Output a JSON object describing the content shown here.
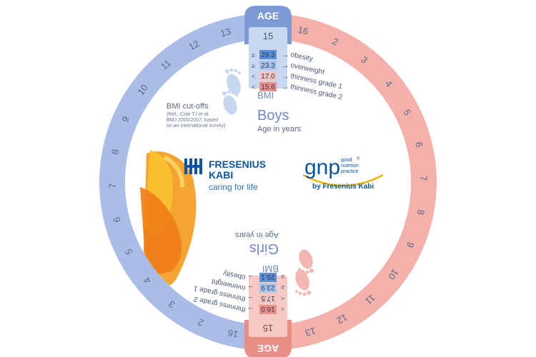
{
  "age_tab": {
    "label": "AGE",
    "current": "15"
  },
  "boys": {
    "title": "Boys",
    "subtitle": "Age in years",
    "bmi_label": "BMI",
    "rows": [
      {
        "sym": "≥",
        "value": "28.3",
        "label": "obesity",
        "color": "#5b8fd6"
      },
      {
        "sym": "≥",
        "value": "23.3",
        "label": "overweight",
        "color": "#a9c3eb"
      },
      {
        "sym": "<",
        "value": "17.0",
        "label": "thinness grade 1",
        "color": "#f5c5c3"
      },
      {
        "sym": "<",
        "value": "15.6",
        "label": "thinness grade 2",
        "color": "#ee8e87"
      }
    ],
    "ring_numbers": [
      "16",
      "2",
      "3",
      "4",
      "5",
      "6",
      "7",
      "8",
      "9",
      "10",
      "11",
      "12",
      "13",
      "14"
    ]
  },
  "girls": {
    "title": "Girls",
    "subtitle": "Age in years",
    "bmi_label": "BMI",
    "rows": [
      {
        "sym": "<",
        "value": "16.0",
        "label": "thinness grade 2",
        "color": "#ee8e87"
      },
      {
        "sym": "<",
        "value": "17.5",
        "label": "thinness grade 1",
        "color": "#f5c5c3"
      },
      {
        "sym": "≥",
        "value": "23.9",
        "label": "overweight",
        "color": "#a9c3eb"
      },
      {
        "sym": "≥",
        "value": "29.1",
        "label": "obesity",
        "color": "#5b8fd6"
      }
    ],
    "ring_numbers": [
      "16",
      "2",
      "3",
      "4",
      "5",
      "6",
      "7",
      "8",
      "9",
      "10",
      "11",
      "12",
      "13",
      "14"
    ]
  },
  "cutoffs": {
    "title": "BMI cut-offs",
    "lines": [
      "(Ref.: Cole TJ et al.",
      "BMJ 2000/2007, based",
      "on an international survey)"
    ]
  },
  "fresenius": {
    "line1": "FRESENIUS",
    "line2": "KABI",
    "tagline": "caring for life"
  },
  "gnp": {
    "mark": "gnp",
    "small1": "good",
    "small2": "nutrition",
    "small3": "practice",
    "by": "by Fresenius Kabi",
    "reg": "®"
  },
  "colors": {
    "blue": "#a9bde6",
    "blue_dark": "#7e9ad5",
    "pink": "#f4b1ab",
    "pink_dark": "#e98f87",
    "brand": "#0a55a4",
    "text": "#5b6a86"
  }
}
